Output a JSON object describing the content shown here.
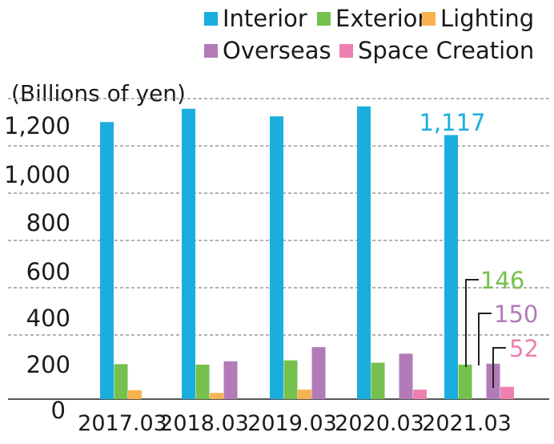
{
  "chart_data": {
    "type": "bar",
    "unit_label": "(Billions of yen)",
    "categories": [
      "2017.03",
      "2018.03",
      "2019.03",
      "2020.03",
      "2021.03"
    ],
    "series": [
      {
        "name": "Interior",
        "color": "#1aaede",
        "values": [
          1172,
          1228,
          1196,
          1238,
          1117
        ]
      },
      {
        "name": "Exterior",
        "color": "#76c04e",
        "values": [
          148,
          146,
          164,
          154,
          146
        ]
      },
      {
        "name": "Lighting",
        "color": "#f6b350",
        "values": [
          38,
          26,
          40,
          0,
          0
        ]
      },
      {
        "name": "Overseas",
        "color": "#b27bb8",
        "values": [
          0,
          160,
          220,
          192,
          150
        ]
      },
      {
        "name": "Space Creation",
        "color": "#ef7fb0",
        "values": [
          0,
          0,
          0,
          40,
          52
        ]
      }
    ],
    "ytick_labels": [
      "0",
      "200",
      "400",
      "600",
      "800",
      "1,000",
      "1,200"
    ],
    "ylim": [
      0,
      1300
    ],
    "grid": true,
    "legend_position": "top-right",
    "annotations": [
      {
        "text": "1,117",
        "color": "#1aaede"
      },
      {
        "text": "146",
        "color": "#76c04e"
      },
      {
        "text": "150",
        "color": "#b27bb8"
      },
      {
        "text": "52",
        "color": "#ef7fb0"
      }
    ]
  }
}
